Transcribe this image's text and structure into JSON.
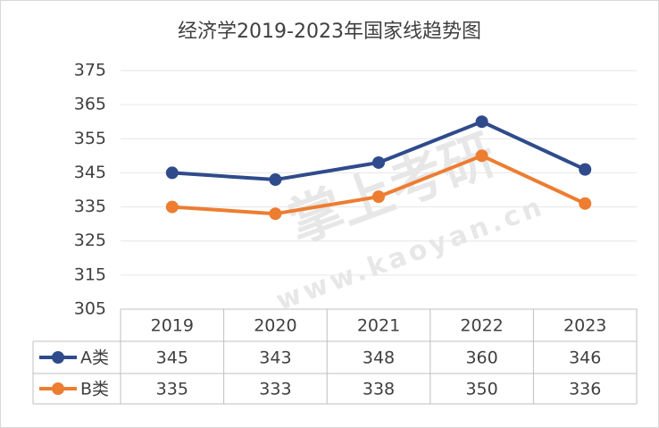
{
  "chart_data": {
    "type": "line",
    "title": "经济学2019-2023年国家线趋势图",
    "categories": [
      "2019",
      "2020",
      "2021",
      "2022",
      "2023"
    ],
    "series": [
      {
        "name": "A类",
        "color": "#2f4b8b",
        "values": [
          345,
          343,
          348,
          360,
          346
        ]
      },
      {
        "name": "B类",
        "color": "#ed7d31",
        "values": [
          335,
          333,
          338,
          350,
          336
        ]
      }
    ],
    "ylim": [
      305,
      375
    ],
    "yticks": [
      305,
      315,
      325,
      335,
      345,
      355,
      365,
      375
    ],
    "grid": true,
    "data_table": true
  },
  "watermark": {
    "brand": "掌上考研",
    "url": "www.kaoyan.cn"
  }
}
